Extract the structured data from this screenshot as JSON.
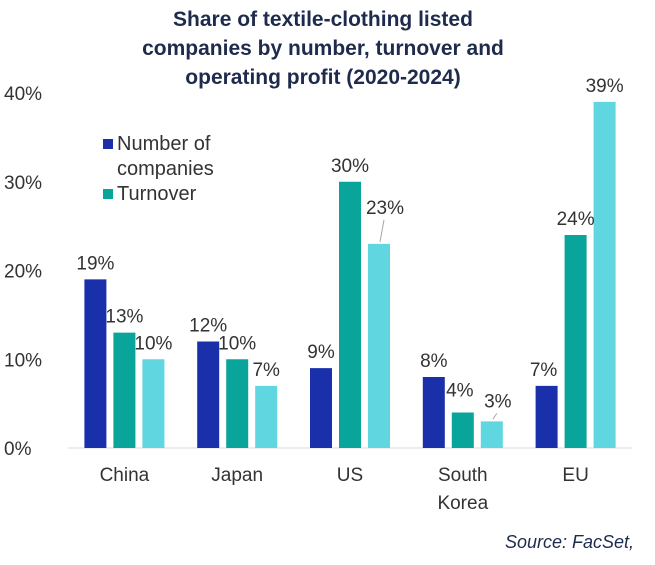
{
  "chart_data": {
    "type": "bar",
    "title_lines": [
      "Share of textile-clothing listed",
      "companies by number, turnover and",
      "operating profit (2020-2024)"
    ],
    "categories": [
      {
        "lines": [
          "China"
        ]
      },
      {
        "lines": [
          "Japan"
        ]
      },
      {
        "lines": [
          "US"
        ]
      },
      {
        "lines": [
          "South",
          "Korea"
        ]
      },
      {
        "lines": [
          "EU"
        ]
      }
    ],
    "series": [
      {
        "name_lines": [
          "Number of",
          "companies"
        ],
        "color": "#1a2faa",
        "values": [
          19,
          12,
          9,
          8,
          7
        ],
        "labels": [
          "19%",
          "12%",
          "9%",
          "8%",
          "7%"
        ]
      },
      {
        "name_lines": [
          "Turnover"
        ],
        "color": "#0aa59a",
        "values": [
          13,
          10,
          30,
          4,
          24
        ],
        "labels": [
          "13%",
          "10%",
          "30%",
          "4%",
          "24%"
        ]
      },
      {
        "color": "#5fd6e0",
        "values": [
          10,
          7,
          23,
          3,
          39
        ],
        "labels": [
          "10%",
          "7%",
          "23%",
          "3%",
          "39%"
        ]
      }
    ],
    "y_ticks": [
      "0%",
      "10%",
      "20%",
      "30%",
      "40%"
    ],
    "ylim": [
      0,
      40
    ],
    "grid": false,
    "legend_position": "top-left",
    "source": "Source: FacSet,"
  }
}
